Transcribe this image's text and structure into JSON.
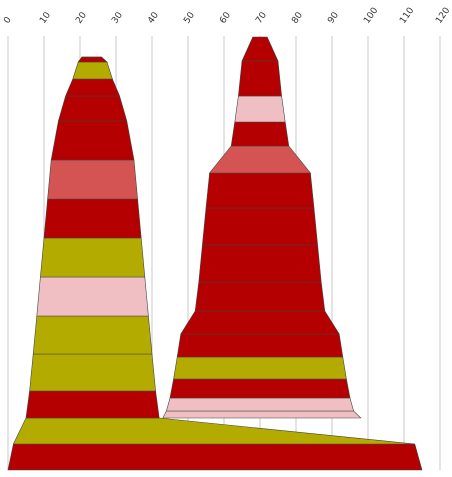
{
  "chart_data": {
    "type": "area",
    "x_axis": {
      "position": "top",
      "ticks": [
        0,
        10,
        20,
        30,
        40,
        50,
        60,
        70,
        80,
        90,
        100,
        110,
        120
      ],
      "min": 0,
      "max": 120,
      "grid": true
    },
    "colors": {
      "red": "#b40000",
      "olive": "#b3ab00",
      "pink": "#efbfc3",
      "salmon": "#d45454"
    },
    "stacks": [
      {
        "layers": [
          {
            "left": 0,
            "right": 115,
            "color": "red"
          },
          {
            "left": 1.5,
            "right": 113,
            "color": "olive"
          },
          {
            "left": 5,
            "right": 42,
            "color": "red"
          },
          {
            "left": 6,
            "right": 41,
            "color": "olive"
          },
          {
            "left": 7,
            "right": 40,
            "color": "olive"
          },
          {
            "left": 8,
            "right": 39,
            "color": "pink"
          },
          {
            "left": 9,
            "right": 38,
            "color": "olive"
          },
          {
            "left": 10,
            "right": 37,
            "color": "red"
          },
          {
            "left": 11,
            "right": 36,
            "color": "salmon"
          },
          {
            "left": 12,
            "right": 35,
            "color": "red"
          },
          {
            "left": 14,
            "right": 33,
            "color": "red"
          },
          {
            "left": 16,
            "right": 31,
            "color": "red"
          },
          {
            "left": 18,
            "right": 29,
            "color": "olive"
          },
          {
            "left": 19.5,
            "right": 27.5,
            "color": "red"
          },
          {
            "left": 20.5,
            "right": 26,
            "color": "pink"
          }
        ]
      },
      {
        "layers": [
          {
            "left": 43,
            "right": 98,
            "color": "pink"
          },
          {
            "left": 44,
            "right": 96,
            "color": "pink"
          },
          {
            "left": 45,
            "right": 95,
            "color": "red"
          },
          {
            "left": 46,
            "right": 94,
            "color": "olive"
          },
          {
            "left": 47,
            "right": 93,
            "color": "red"
          },
          {
            "left": 48,
            "right": 92,
            "color": "red"
          },
          {
            "left": 52,
            "right": 88,
            "color": "red"
          },
          {
            "left": 53,
            "right": 87,
            "color": "red"
          },
          {
            "left": 54,
            "right": 86,
            "color": "red"
          },
          {
            "left": 55,
            "right": 85,
            "color": "red"
          },
          {
            "left": 56,
            "right": 84,
            "color": "salmon"
          },
          {
            "left": 62,
            "right": 78,
            "color": "red"
          },
          {
            "left": 63,
            "right": 77,
            "color": "pink"
          },
          {
            "left": 64,
            "right": 76,
            "color": "red"
          },
          {
            "left": 65,
            "right": 75,
            "color": "red"
          }
        ]
      }
    ]
  }
}
